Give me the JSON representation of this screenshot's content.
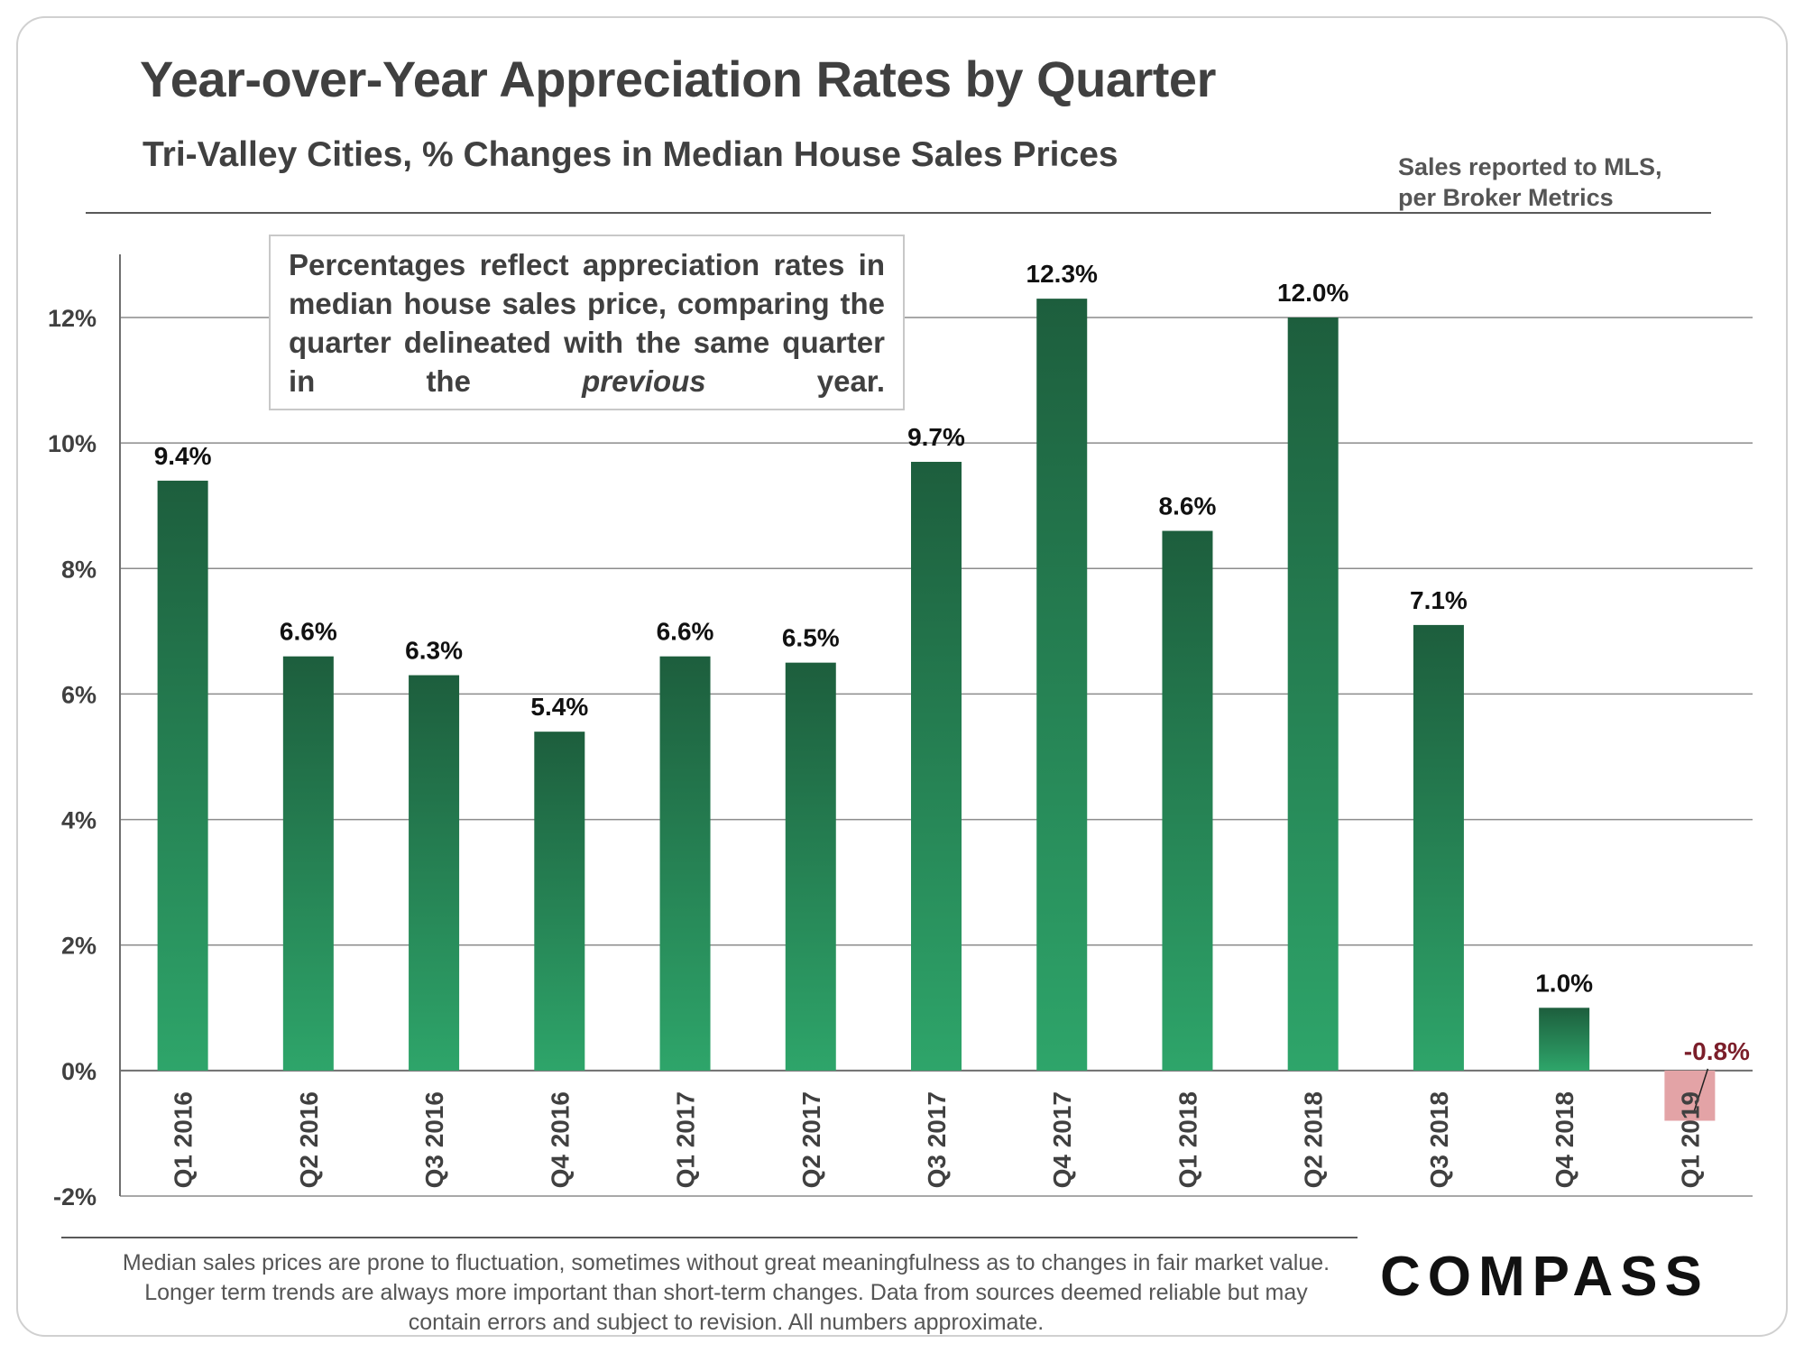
{
  "header": {
    "title": "Year-over-Year Appreciation Rates by Quarter",
    "subtitle": "Tri-Valley  Cities, % Changes in Median House Sales Prices",
    "source_line1": "Sales reported to MLS,",
    "source_line2": "per Broker Metrics"
  },
  "note": {
    "text_before": "Percentages reflect appreciation rates in median house sales price, comparing the quarter delineated with the same quarter in the ",
    "emphasis": "previous",
    "text_after": " year."
  },
  "footer": {
    "disclaimer": "Median sales prices are prone to fluctuation, sometimes without great meaningfulness as to changes in fair market value. Longer term trends are always more important than short-term changes. Data from sources deemed reliable but may contain errors and subject to revision. All numbers approximate.",
    "logo": "COMPASS"
  },
  "colors": {
    "bar_top": "#1d5e3d",
    "bar_bottom": "#2ea56a",
    "negative_highlight": "#e3a3a6",
    "negative_label": "#7b1e2a",
    "gridline": "#8c8c8c"
  },
  "chart_data": {
    "type": "bar",
    "title": "Year-over-Year Appreciation Rates by Quarter",
    "subtitle": "Tri-Valley  Cities, % Changes in Median House Sales Prices",
    "categories": [
      "Q1 2016",
      "Q2 2016",
      "Q3 2016",
      "Q4 2016",
      "Q1 2017",
      "Q2 2017",
      "Q3 2017",
      "Q4 2017",
      "Q1 2018",
      "Q2 2018",
      "Q3 2018",
      "Q4 2018",
      "Q1 2019"
    ],
    "values": [
      9.4,
      6.6,
      6.3,
      5.4,
      6.6,
      6.5,
      9.7,
      12.3,
      8.6,
      12.0,
      7.1,
      1.0,
      -0.8
    ],
    "data_labels": [
      "9.4%",
      "6.6%",
      "6.3%",
      "5.4%",
      "6.6%",
      "6.5%",
      "9.7%",
      "12.3%",
      "8.6%",
      "12.0%",
      "7.1%",
      "1.0%",
      "-0.8%"
    ],
    "yticks": [
      -2,
      0,
      2,
      4,
      6,
      8,
      10,
      12
    ],
    "ytick_labels": [
      "-2%",
      "0%",
      "2%",
      "4%",
      "6%",
      "8%",
      "10%",
      "12%"
    ],
    "ylim": [
      -2,
      13
    ],
    "grid": true,
    "xlabel": "",
    "ylabel": ""
  }
}
